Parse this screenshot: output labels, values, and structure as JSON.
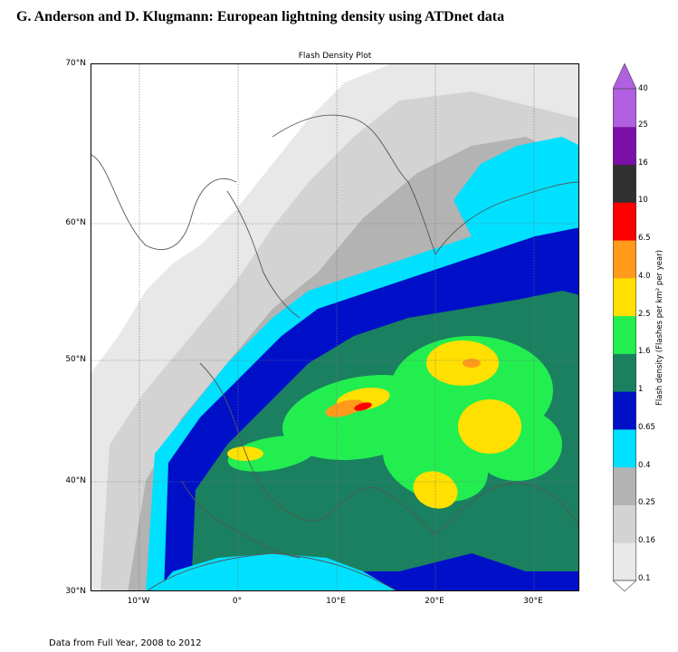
{
  "header": {
    "title": "G. Anderson and D. Klugmann: European lightning density using ATDnet data"
  },
  "plot": {
    "title": "Flash Density Plot",
    "lat_labels": [
      "70°N",
      "60°N",
      "50°N",
      "40°N",
      "30°N"
    ],
    "lon_labels": [
      "10°W",
      "0°",
      "10°E",
      "20°E",
      "30°E"
    ]
  },
  "colorbar": {
    "title": "Flash density (Flashes per km² per year)",
    "bins": [
      {
        "label": "0.1",
        "color": "#e8e8e8"
      },
      {
        "label": "0.16",
        "color": "#d3d3d3"
      },
      {
        "label": "0.25",
        "color": "#b3b3b3"
      },
      {
        "label": "0.4",
        "color": "#00e0ff"
      },
      {
        "label": "0.65",
        "color": "#0010c8"
      },
      {
        "label": "1",
        "color": "#1a8060"
      },
      {
        "label": "1.6",
        "color": "#22ee50"
      },
      {
        "label": "2.5",
        "color": "#ffe000"
      },
      {
        "label": "4.0",
        "color": "#ff9a1a"
      },
      {
        "label": "6.5",
        "color": "#ff0000"
      },
      {
        "label": "10",
        "color": "#303030"
      },
      {
        "label": "16",
        "color": "#7a10a8"
      },
      {
        "label": "25",
        "color": "#b060e0"
      }
    ],
    "top_label": "40"
  },
  "footnote": "Data from Full Year, 2008 to 2012"
}
